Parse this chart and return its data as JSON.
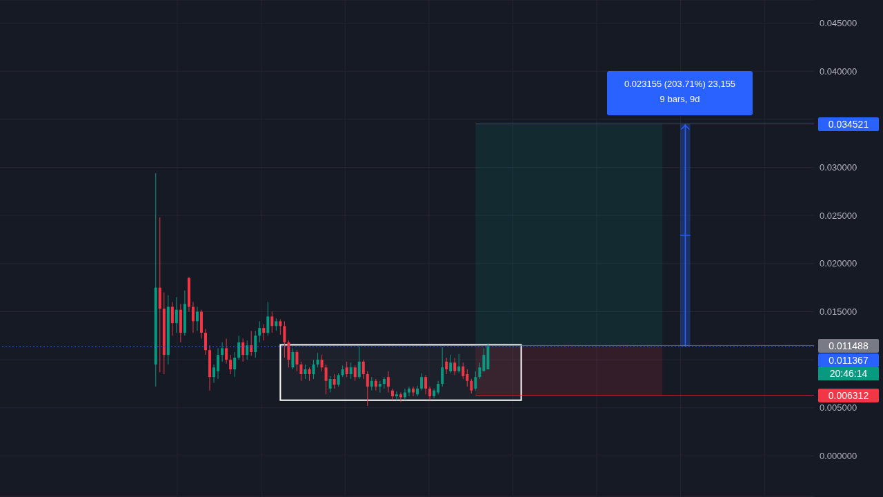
{
  "chart_data": {
    "type": "candlestick",
    "categories": [
      null,
      null,
      null,
      null,
      null,
      null,
      null,
      null,
      null,
      null,
      null,
      null,
      null,
      null,
      null,
      null,
      null,
      null,
      null,
      null,
      null,
      null,
      null,
      null,
      null,
      null,
      null,
      null,
      null,
      null,
      null,
      null,
      null,
      null,
      null,
      null,
      null,
      null,
      null,
      null,
      null,
      null,
      null,
      null,
      null,
      null,
      null,
      null,
      null,
      null,
      null,
      null,
      null,
      null,
      null,
      null,
      null,
      null,
      null,
      null,
      null,
      null,
      null,
      null,
      null,
      null,
      null,
      null,
      null,
      null,
      null,
      null,
      null,
      null,
      null,
      null,
      null,
      null,
      null,
      null,
      null,
      null,
      null,
      null,
      null,
      null,
      null,
      null,
      null,
      null,
      null,
      null,
      null,
      null,
      null,
      null,
      null,
      null,
      null,
      null,
      null,
      null,
      null,
      null,
      null,
      null,
      null,
      null,
      null,
      null,
      null,
      null,
      null,
      null,
      null,
      null,
      null,
      null,
      null,
      null,
      null,
      null,
      null,
      null,
      null,
      null,
      null,
      null,
      null,
      null,
      null,
      null,
      null,
      null,
      null,
      null,
      null,
      null,
      null,
      null,
      null,
      null,
      null,
      null,
      null,
      null,
      null,
      null,
      null,
      null,
      null,
      null,
      null,
      null,
      null,
      null,
      null,
      null,
      null,
      null,
      null,
      null,
      null,
      null,
      null,
      null,
      null,
      null,
      null,
      null,
      null,
      null,
      null,
      null,
      null,
      null,
      null,
      null,
      null,
      null,
      null,
      null,
      null,
      null,
      null,
      null,
      null,
      null,
      null,
      null,
      null,
      null,
      null,
      null,
      null,
      null
    ],
    "ohlc": [
      null,
      null,
      null,
      null,
      null,
      null,
      null,
      null,
      null,
      null,
      null,
      null,
      null,
      null,
      null,
      null,
      null,
      null,
      null,
      null,
      null,
      null,
      null,
      null,
      null,
      null,
      null,
      null,
      null,
      null,
      null,
      null,
      null,
      null,
      null,
      null,
      null,
      [
        0.0095,
        0.0294,
        0.0072,
        0.0175
      ],
      [
        0.0175,
        0.0248,
        0.0087,
        0.0153
      ],
      [
        0.0153,
        0.017,
        0.0085,
        0.0105
      ],
      [
        0.0105,
        0.0167,
        0.0095,
        0.0155
      ],
      [
        0.0155,
        0.016,
        0.0125,
        0.0138
      ],
      [
        0.0138,
        0.0165,
        0.0128,
        0.0152
      ],
      [
        0.0152,
        0.0158,
        0.0118,
        0.0128
      ],
      [
        0.0128,
        0.0172,
        0.0125,
        0.0158
      ],
      [
        0.0185,
        0.0186,
        0.015,
        0.0155
      ],
      [
        0.0155,
        0.016,
        0.0128,
        0.014
      ],
      [
        0.014,
        0.0155,
        0.013,
        0.015
      ],
      [
        0.015,
        0.0152,
        0.0122,
        0.0128
      ],
      [
        0.0128,
        0.0132,
        0.0105,
        0.011
      ],
      [
        0.011,
        0.0115,
        0.0068,
        0.0082
      ],
      [
        0.0082,
        0.0095,
        0.0076,
        0.0092
      ],
      [
        0.0088,
        0.0112,
        0.008,
        0.0105
      ],
      [
        0.0105,
        0.0118,
        0.0098,
        0.0112
      ],
      [
        0.0112,
        0.0122,
        0.0096,
        0.01
      ],
      [
        0.01,
        0.0105,
        0.0085,
        0.009
      ],
      [
        0.009,
        0.0108,
        0.0082,
        0.0102
      ],
      [
        0.0102,
        0.0125,
        0.01,
        0.0118
      ],
      [
        0.0118,
        0.0122,
        0.0098,
        0.0105
      ],
      [
        0.0105,
        0.012,
        0.01,
        0.0115
      ],
      [
        0.0115,
        0.013,
        0.0104,
        0.0108
      ],
      [
        0.0108,
        0.013,
        0.0102,
        0.0125
      ],
      [
        0.0125,
        0.014,
        0.0118,
        0.0133
      ],
      [
        0.0133,
        0.0137,
        0.012,
        0.0128
      ],
      [
        0.0128,
        0.016,
        0.0125,
        0.0145
      ],
      [
        0.0145,
        0.015,
        0.0128,
        0.0135
      ],
      [
        0.0135,
        0.0143,
        0.013,
        0.014
      ],
      [
        0.014,
        0.0142,
        0.0126,
        0.0135
      ],
      [
        0.0135,
        0.014,
        0.0102,
        0.0118
      ],
      [
        0.0118,
        0.012,
        0.0092,
        0.01
      ],
      [
        0.0092,
        0.0112,
        0.009,
        0.0108
      ],
      [
        0.0108,
        0.011,
        0.0088,
        0.0095
      ],
      [
        0.0095,
        0.0098,
        0.0078,
        0.0085
      ],
      [
        0.0085,
        0.0095,
        0.008,
        0.009
      ],
      [
        0.009,
        0.0092,
        0.0078,
        0.0085
      ],
      [
        0.0085,
        0.01,
        0.008,
        0.0095
      ],
      [
        0.0095,
        0.0107,
        0.0092,
        0.01
      ],
      [
        0.01,
        0.0105,
        0.0088,
        0.0092
      ],
      [
        0.0092,
        0.0095,
        0.0064,
        0.0078
      ],
      [
        0.007,
        0.0083,
        0.0066,
        0.008
      ],
      [
        0.008,
        0.0085,
        0.007,
        0.0074
      ],
      [
        0.0074,
        0.0086,
        0.0072,
        0.0084
      ],
      [
        0.0084,
        0.0094,
        0.0082,
        0.009
      ],
      [
        0.0092,
        0.0098,
        0.0082,
        0.0085
      ],
      [
        0.0085,
        0.0097,
        0.008,
        0.0092
      ],
      [
        0.0092,
        0.0094,
        0.0078,
        0.0082
      ],
      [
        0.0082,
        0.0114,
        0.008,
        0.0098
      ],
      [
        0.0098,
        0.01,
        0.008,
        0.0085
      ],
      [
        0.0085,
        0.0088,
        0.0052,
        0.0072
      ],
      [
        0.0072,
        0.0082,
        0.0068,
        0.0078
      ],
      [
        0.0078,
        0.008,
        0.0068,
        0.0072
      ],
      [
        0.0072,
        0.0078,
        0.0066,
        0.0075
      ],
      [
        0.0075,
        0.0082,
        0.007,
        0.008
      ],
      [
        0.0082,
        0.0088,
        0.0066,
        0.0072
      ],
      [
        0.0068,
        0.007,
        0.0058,
        0.0062
      ],
      [
        0.0062,
        0.0067,
        0.0058,
        0.0064
      ],
      [
        0.0064,
        0.0066,
        0.0056,
        0.0061
      ],
      [
        0.0061,
        0.007,
        0.0058,
        0.0066
      ],
      [
        0.0066,
        0.0072,
        0.0062,
        0.007
      ],
      [
        0.007,
        0.0072,
        0.0062,
        0.0066
      ],
      [
        0.0064,
        0.0073,
        0.0062,
        0.007
      ],
      [
        0.007,
        0.0086,
        0.0068,
        0.0082
      ],
      [
        0.0082,
        0.0084,
        0.0064,
        0.007
      ],
      [
        0.007,
        0.0072,
        0.0058,
        0.0062
      ],
      [
        0.0062,
        0.007,
        0.006,
        0.0068
      ],
      [
        0.0066,
        0.0078,
        0.0064,
        0.0075
      ],
      [
        0.0075,
        0.0113,
        0.0072,
        0.0092
      ],
      [
        0.0098,
        0.0102,
        0.0085,
        0.009
      ],
      [
        0.0088,
        0.0105,
        0.0086,
        0.0097
      ],
      [
        0.0097,
        0.0102,
        0.0084,
        0.0088
      ],
      [
        0.0088,
        0.0106,
        0.0086,
        0.0093
      ],
      [
        0.0093,
        0.0097,
        0.008,
        0.0083
      ],
      [
        0.0085,
        0.009,
        0.0072,
        0.0078
      ],
      [
        0.0078,
        0.008,
        0.0065,
        0.0068
      ],
      [
        0.007,
        0.0088,
        0.0068,
        0.0082
      ],
      [
        0.0082,
        0.0097,
        0.008,
        0.0092
      ],
      [
        0.0088,
        0.0112,
        0.0088,
        0.0105
      ],
      [
        0.009,
        0.0117,
        0.009,
        0.0114
      ],
      null,
      null,
      null,
      null,
      null,
      null,
      null,
      null,
      null,
      null,
      null,
      null,
      null,
      null,
      null,
      null,
      null,
      null,
      null,
      null,
      null,
      null,
      null,
      null,
      null,
      null,
      null,
      null,
      null,
      null,
      null,
      null,
      null,
      null,
      null,
      null,
      null,
      null,
      null,
      null,
      null,
      null,
      null,
      null,
      null,
      null,
      null,
      null,
      null,
      null,
      null,
      null,
      null,
      null,
      null,
      null,
      null,
      null,
      null,
      null,
      null,
      null,
      null,
      null,
      null,
      null,
      null,
      null,
      null,
      null,
      null,
      null,
      null,
      null,
      null,
      null,
      null,
      null
    ],
    "colors": [
      null,
      null,
      null,
      null,
      null,
      null,
      null,
      null,
      null,
      null,
      null,
      null,
      null,
      null,
      null,
      null,
      null,
      null,
      null,
      null,
      null,
      null,
      null,
      null,
      null,
      null,
      null,
      null,
      null,
      null,
      null,
      null,
      null,
      null,
      null,
      null,
      null,
      "#089981",
      "#f23645",
      "#f23645",
      "#089981",
      "#f23645",
      "#089981",
      "#f23645",
      "#089981",
      "#f23645",
      "#f23645",
      "#089981",
      "#f23645",
      "#f23645",
      "#f23645",
      "#089981",
      "#089981",
      "#089981",
      "#f23645",
      "#f23645",
      "#089981",
      "#089981",
      "#f23645",
      "#089981",
      "#f23645",
      "#089981",
      "#089981",
      "#f23645",
      "#089981",
      "#f23645",
      "#089981",
      "#f23645",
      "#f23645",
      "#f23645",
      "#089981",
      "#f23645",
      "#f23645",
      "#089981",
      "#f23645",
      "#089981",
      "#089981",
      "#f23645",
      "#f23645",
      "#089981",
      "#f23645",
      "#089981",
      "#089981",
      "#f23645",
      "#089981",
      "#f23645",
      "#089981",
      "#f23645",
      "#f23645",
      "#089981",
      "#f23645",
      "#089981",
      "#089981",
      "#f23645",
      "#f23645",
      "#089981",
      "#f23645",
      "#089981",
      "#089981",
      "#f23645",
      "#089981",
      "#089981",
      "#f23645",
      "#f23645",
      "#089981",
      "#089981",
      "#089981",
      "#f23645",
      "#089981",
      "#f23645",
      "#089981",
      "#f23645",
      "#f23645",
      "#f23645",
      "#089981",
      "#089981",
      "#089981",
      "#089981",
      null,
      null,
      null,
      null,
      null,
      null,
      null,
      null,
      null,
      null,
      null,
      null,
      null,
      null,
      null,
      null,
      null,
      null,
      null,
      null,
      null,
      null,
      null,
      null,
      null,
      null,
      null,
      null,
      null,
      null,
      null,
      null,
      null,
      null,
      null,
      null,
      null,
      null,
      null,
      null,
      null,
      null,
      null,
      null,
      null,
      null,
      null,
      null,
      null,
      null,
      null,
      null,
      null,
      null,
      null,
      null,
      null,
      null,
      null,
      null,
      null,
      null,
      null,
      null,
      null,
      null,
      null,
      null,
      null,
      null,
      null,
      null,
      null,
      null,
      null,
      null,
      null,
      null
    ],
    "ylim": [
      -0.0042,
      0.0474
    ],
    "yticks": [
      {
        "value": 0,
        "label": "0.000000"
      },
      {
        "value": 0.005,
        "label": "0.005000"
      },
      {
        "value": 0.01,
        "label": null
      },
      {
        "value": 0.015,
        "label": "0.015000"
      },
      {
        "value": 0.02,
        "label": "0.020000"
      },
      {
        "value": 0.025,
        "label": "0.025000"
      },
      {
        "value": 0.03,
        "label": "0.030000"
      },
      {
        "value": 0.035,
        "label": null
      },
      {
        "value": 0.04,
        "label": "0.040000"
      },
      {
        "value": 0.045,
        "label": "0.045000"
      }
    ],
    "tick_labels": "y",
    "grid": true,
    "ref_lines": [
      {
        "axis": "y",
        "value": 0.011367,
        "label": "0.011367",
        "color": "#2962ff",
        "line_style": "dotted"
      },
      {
        "axis": "y",
        "value": 0.034521,
        "label": "0.034521",
        "color": "#2962ff"
      },
      {
        "axis": "y",
        "value": 0.011488,
        "label": "0.011488",
        "color": "#787b86"
      },
      {
        "axis": "y",
        "value": 0.006312,
        "label": "0.006312",
        "color": "#f23645"
      }
    ],
    "bands": [
      {
        "axis": "y",
        "from": 0.011367,
        "to": 0.034521,
        "color": "#089981"
      },
      {
        "axis": "y",
        "from": 0.006312,
        "to": 0.011367,
        "color": "#f23645"
      },
      {
        "axis": "y",
        "from": 0.0058,
        "to": 0.01155,
        "color": "#ffffff"
      }
    ],
    "annotations": [
      "0.023155 (203.71%) 23,155",
      "9 bars, 9d",
      "20:46:14"
    ]
  }
}
